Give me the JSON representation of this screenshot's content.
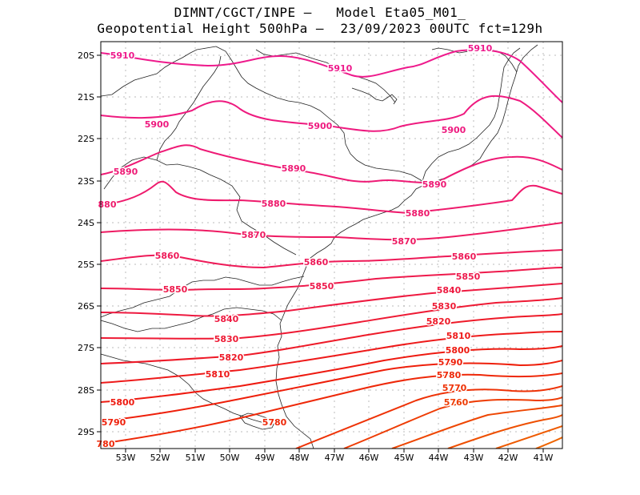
{
  "title": {
    "line1": "DIMNT/CGCT/INPE –   Model Eta05_M01_",
    "line2": "Geopotential Height 500hPa –  23/09/2023 00UTC fct=129h"
  },
  "axes": {
    "lon_labels": [
      "53W",
      "52W",
      "51W",
      "50W",
      "49W",
      "48W",
      "47W",
      "46W",
      "45W",
      "44W",
      "43W",
      "42W",
      "41W"
    ],
    "lat_labels": [
      "20S",
      "21S",
      "22S",
      "23S",
      "24S",
      "25S",
      "26S",
      "27S",
      "28S",
      "29S"
    ]
  },
  "contours": [
    {
      "value": 5910,
      "color": "#ee1a8c",
      "labels": [
        "5910",
        "5910",
        "5910"
      ]
    },
    {
      "value": 5900,
      "color": "#ee1a7f",
      "labels": [
        "5900",
        "5900",
        "5900"
      ]
    },
    {
      "value": 5890,
      "color": "#ee1a75",
      "labels": [
        "5890",
        "5890",
        "5890"
      ]
    },
    {
      "value": 5880,
      "color": "#ee1a6c",
      "labels": [
        "880",
        "5880",
        "5880"
      ]
    },
    {
      "value": 5870,
      "color": "#ee1a62",
      "labels": [
        "5870",
        "5870"
      ]
    },
    {
      "value": 5860,
      "color": "#ee1a58",
      "labels": [
        "5860",
        "5860",
        "5860"
      ]
    },
    {
      "value": 5850,
      "color": "#ee1a4c",
      "labels": [
        "5850",
        "5850",
        "5850"
      ]
    },
    {
      "value": 5840,
      "color": "#ee1a40",
      "labels": [
        "5840",
        "5840"
      ]
    },
    {
      "value": 5830,
      "color": "#ee1a34",
      "labels": [
        "5830",
        "5830"
      ]
    },
    {
      "value": 5820,
      "color": "#ee1a28",
      "labels": [
        "5820",
        "5820"
      ]
    },
    {
      "value": 5810,
      "color": "#ee1a1a",
      "labels": [
        "5810",
        "5810"
      ]
    },
    {
      "value": 5800,
      "color": "#ee1a10",
      "labels": [
        "5800",
        "5800"
      ]
    },
    {
      "value": 5790,
      "color": "#ee1f0a",
      "labels": [
        "5790",
        "5790"
      ]
    },
    {
      "value": 5780,
      "color": "#ee2808",
      "labels": [
        "780",
        "5780",
        "5780"
      ]
    },
    {
      "value": 5770,
      "color": "#ee3206",
      "labels": [
        "5770"
      ]
    },
    {
      "value": 5760,
      "color": "#ee3c04",
      "labels": [
        "5760"
      ]
    },
    {
      "value": 5750,
      "color": "#ee4602",
      "labels": []
    },
    {
      "value": 5740,
      "color": "#ee4f00",
      "labels": []
    },
    {
      "value": 5730,
      "color": "#ee5a00",
      "labels": []
    },
    {
      "value": 5720,
      "color": "#ee6400",
      "labels": []
    }
  ]
}
